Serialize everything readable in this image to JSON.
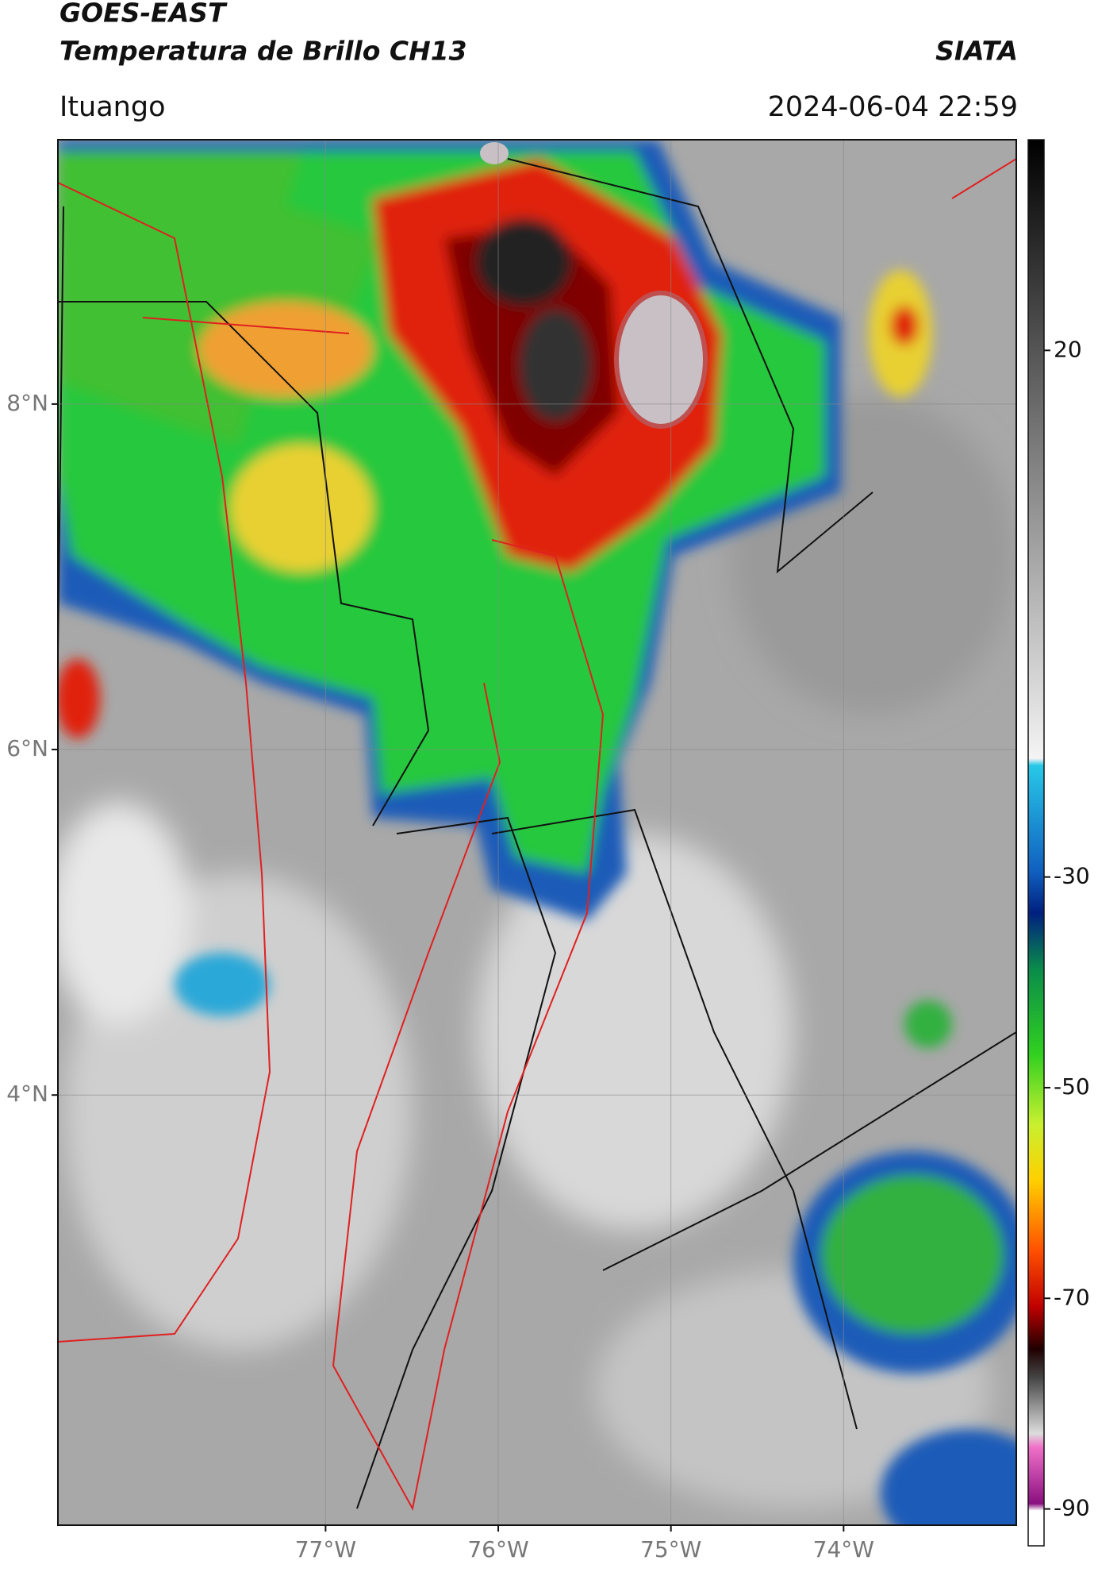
{
  "header": {
    "title": "GOES-EAST",
    "subtitle": "Temperatura de Brillo CH13",
    "source": "SIATA",
    "location": "Ituango",
    "datetime": "2024-06-04 22:59"
  },
  "map": {
    "xlim": [
      -78.55,
      -73.0
    ],
    "ylim": [
      1.51,
      9.53
    ],
    "xticks": [
      {
        "value": -77,
        "label": "77°W"
      },
      {
        "value": -76,
        "label": "76°W"
      },
      {
        "value": -75,
        "label": "75°W"
      },
      {
        "value": -74,
        "label": "74°W"
      }
    ],
    "yticks": [
      {
        "value": 8,
        "label": "8°N"
      },
      {
        "value": 6,
        "label": "6°N"
      },
      {
        "value": 4,
        "label": "4°N"
      }
    ],
    "grid": true
  },
  "colorbar": {
    "lim": [
      -93.5,
      40
    ],
    "ticks": [
      20,
      -30,
      -50,
      -70,
      -90
    ]
  }
}
